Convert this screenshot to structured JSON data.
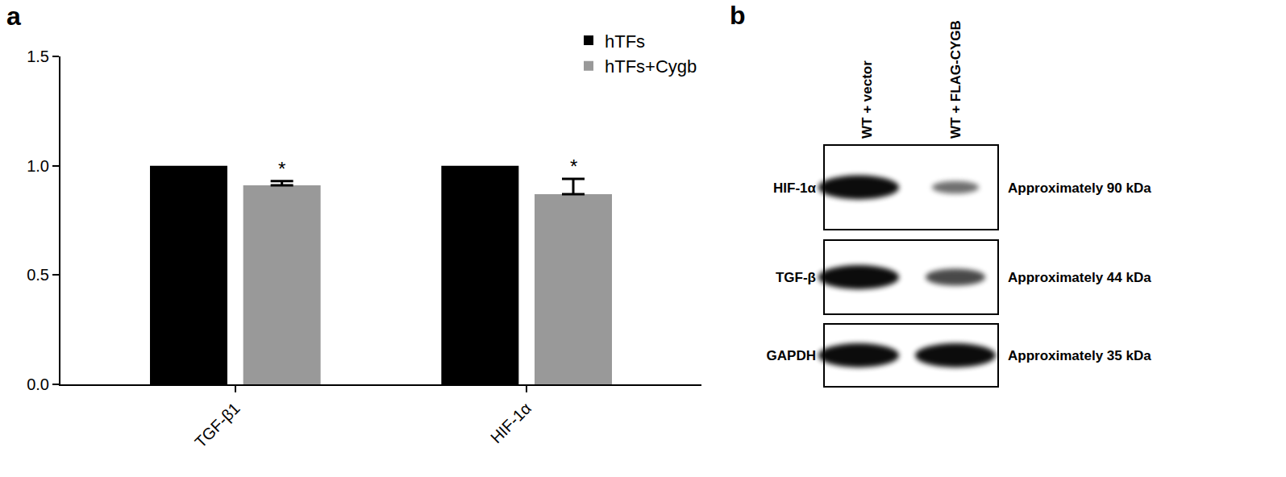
{
  "chart_data": {
    "type": "bar",
    "panel": "a",
    "categories": [
      "TGF-β1",
      "HIF-1α"
    ],
    "series": [
      {
        "name": "hTFs",
        "color": "#000000",
        "values": [
          1.0,
          1.0
        ]
      },
      {
        "name": "hTFs+Cygb",
        "color": "#999999",
        "values": [
          0.91,
          0.87
        ],
        "error": [
          0.02,
          0.07
        ]
      }
    ],
    "ylim": [
      0,
      1.5
    ],
    "yticks": [
      {
        "value": 0,
        "label": "0.0"
      },
      {
        "value": 0.5,
        "label": "0.5"
      },
      {
        "value": 1,
        "label": "1.0"
      },
      {
        "value": 1.5,
        "label": "1.5"
      }
    ],
    "grid": false,
    "legend": "upper right",
    "annotations": [
      {
        "text": "*",
        "category": "TGF-β1",
        "series": "hTFs+Cygb"
      },
      {
        "text": "*",
        "category": "HIF-1α",
        "series": "hTFs+Cygb"
      }
    ]
  },
  "western_blot": {
    "panel": "b",
    "lanes": [
      "WT + vector",
      "WT + FLAG-CYGB"
    ],
    "rows": [
      {
        "label": "HIF-1α",
        "size": "Approximately 90 kDa",
        "band_intensity": [
          1.0,
          0.35
        ]
      },
      {
        "label": "TGF-β",
        "size": "Approximately 44 kDa",
        "band_intensity": [
          1.0,
          0.6
        ]
      },
      {
        "label": "GAPDH",
        "size": "Approximately 35 kDa",
        "band_intensity": [
          1.0,
          1.0
        ]
      }
    ]
  }
}
